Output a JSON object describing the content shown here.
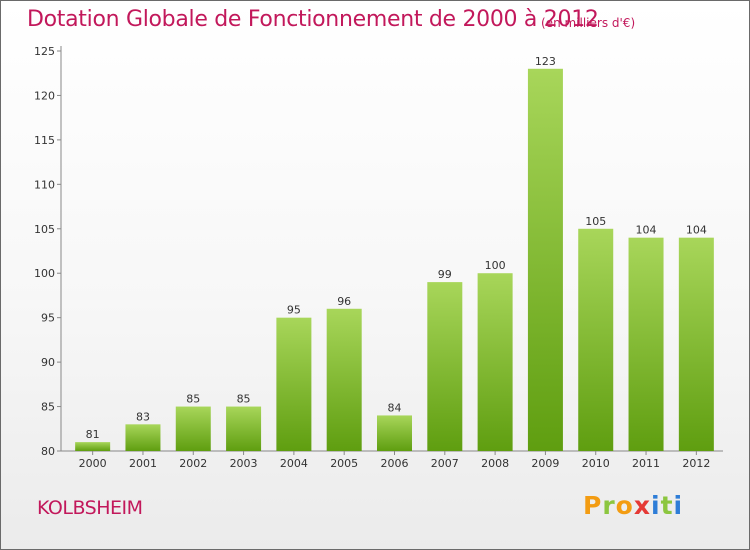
{
  "title": "Dotation Globale de Fonctionnement de 2000 à 2012",
  "unit": "(en milliers d'€)",
  "commune": "KOLBSHEIM",
  "logo": {
    "letters": [
      "P",
      "r",
      "o",
      "x",
      "i",
      "t",
      "i"
    ],
    "colors": [
      "#f39c12",
      "#8cc63f",
      "#f39c12",
      "#e53935",
      "#2e7dd7",
      "#8cc63f",
      "#2e7dd7"
    ]
  },
  "colors": {
    "title": "#c2185b",
    "bar_light": "#a8d65a",
    "bar_dark": "#5f9e10"
  },
  "chart_data": {
    "type": "bar",
    "categories": [
      "2000",
      "2001",
      "2002",
      "2003",
      "2004",
      "2005",
      "2006",
      "2007",
      "2008",
      "2009",
      "2010",
      "2011",
      "2012"
    ],
    "values": [
      81,
      83,
      85,
      85,
      95,
      96,
      84,
      99,
      100,
      123,
      105,
      104,
      104
    ],
    "ylim": [
      80,
      125
    ],
    "yticks": [
      80,
      85,
      90,
      95,
      100,
      105,
      110,
      115,
      120,
      125
    ],
    "grid": false,
    "xlabel": "",
    "ylabel": ""
  }
}
